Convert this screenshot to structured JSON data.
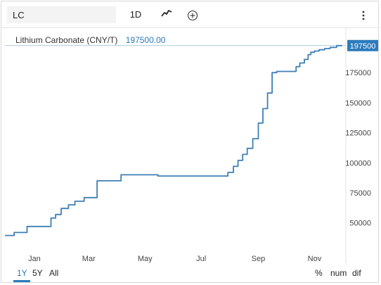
{
  "toolbar": {
    "symbol_value": "LC",
    "interval_label": "1D",
    "chart_type_icon": "line-chart-icon",
    "indicator_icon": "plus-circle-icon",
    "more_icon": "vertical-ellipsis-icon"
  },
  "legend": {
    "name": "Lithium Carbonate (CNY/T)",
    "value": "197500.00"
  },
  "price_label": "197500",
  "colors": {
    "line": "#3f7fb5",
    "accent": "#2b7bbd",
    "axis_text": "#444444",
    "divider": "#e3e3e3"
  },
  "ranges": [
    {
      "label": "1Y",
      "active": true
    },
    {
      "label": "5Y",
      "active": false
    },
    {
      "label": "All",
      "active": false
    }
  ],
  "options": [
    {
      "label": "%"
    },
    {
      "label": "num"
    },
    {
      "label": "dif"
    }
  ],
  "chart_data": {
    "type": "line",
    "title": "",
    "xlabel": "",
    "ylabel": "",
    "x_ticks": [
      "Jan",
      "Mar",
      "May",
      "Jul",
      "Sep",
      "Nov"
    ],
    "x_tick_dates": [
      "2022-01-01",
      "2022-03-01",
      "2022-05-01",
      "2022-07-01",
      "2022-09-01",
      "2022-11-01"
    ],
    "xlim": [
      "2021-11-30",
      "2022-12-05"
    ],
    "y_ticks": [
      50000,
      75000,
      100000,
      125000,
      150000,
      175000
    ],
    "ylim": [
      27000,
      212000
    ],
    "grid": false,
    "current_value": 197500,
    "series": [
      {
        "name": "Lithium Carbonate (CNY/T)",
        "step": true,
        "x": [
          "2021-11-30",
          "2021-12-10",
          "2021-12-24",
          "2022-01-12",
          "2022-01-19",
          "2022-01-24",
          "2022-01-30",
          "2022-02-07",
          "2022-02-14",
          "2022-02-24",
          "2022-03-10",
          "2022-04-05",
          "2022-05-15",
          "2022-06-20",
          "2022-07-26",
          "2022-07-30",
          "2022-08-05",
          "2022-08-10",
          "2022-08-15",
          "2022-08-20",
          "2022-08-26",
          "2022-09-01",
          "2022-09-06",
          "2022-09-11",
          "2022-09-16",
          "2022-09-21",
          "2022-09-26",
          "2022-10-01",
          "2022-10-12",
          "2022-10-16",
          "2022-10-21",
          "2022-10-25",
          "2022-10-28",
          "2022-11-01",
          "2022-11-06",
          "2022-11-12",
          "2022-11-18",
          "2022-11-25",
          "2022-12-01"
        ],
        "y": [
          39500,
          42000,
          47000,
          47000,
          54000,
          57000,
          62000,
          65000,
          68000,
          71000,
          85000,
          90000,
          89000,
          89000,
          89000,
          92000,
          97000,
          102000,
          107000,
          112000,
          120000,
          133000,
          145000,
          158000,
          175000,
          176000,
          176000,
          176000,
          180000,
          183000,
          186000,
          190000,
          192000,
          193000,
          194000,
          195000,
          196000,
          197500,
          197500
        ]
      }
    ]
  }
}
